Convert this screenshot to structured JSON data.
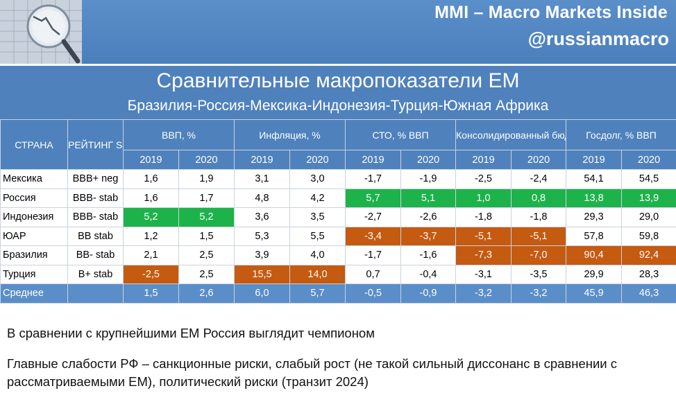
{
  "banner": {
    "title": "MMI – Macro Markets Inside",
    "handle": "@russianmacro"
  },
  "heading": {
    "title": "Сравнительные макропоказатели EM",
    "subtitle": "Бразилия-Россия-Мексика-Индонезия-Турция-Южная Африка"
  },
  "table": {
    "col_country": "СТРАНА",
    "col_rating": "РЕЙТИНГ S&P",
    "groups": [
      {
        "label": "ВВП, %"
      },
      {
        "label": "Инфляция, %"
      },
      {
        "label": "СТО, % ВВП"
      },
      {
        "label": "Консолидированный бюджет, % ВВП"
      },
      {
        "label": "Госдолг, % ВВП"
      }
    ],
    "years": [
      "2019",
      "2020"
    ],
    "rows": [
      {
        "country": "Мексика",
        "rating": "BBB+ neg",
        "values": [
          "1,6",
          "1,9",
          "3,1",
          "3,0",
          "-1,7",
          "-1,9",
          "-2,5",
          "-2,4",
          "54,1",
          "54,5"
        ]
      },
      {
        "country": "Россия",
        "rating": "BBB- stab",
        "values": [
          "1,6",
          "1,7",
          "4,8",
          "4,2",
          "5,7",
          "5,1",
          "1,0",
          "0,8",
          "13,8",
          "13,9"
        ]
      },
      {
        "country": "Индонезия",
        "rating": "BBB- stab",
        "values": [
          "5,2",
          "5,2",
          "3,6",
          "3,5",
          "-2,7",
          "-2,6",
          "-1,8",
          "-1,8",
          "29,3",
          "29,0"
        ]
      },
      {
        "country": "ЮАР",
        "rating": "BB stab",
        "values": [
          "1,2",
          "1,5",
          "5,3",
          "5,5",
          "-3,4",
          "-3,7",
          "-5,1",
          "-5,1",
          "57,8",
          "59,8"
        ]
      },
      {
        "country": "Бразилия",
        "rating": "BB- stab",
        "values": [
          "2,1",
          "2,5",
          "3,9",
          "4,0",
          "-1,7",
          "-1,6",
          "-7,3",
          "-7,0",
          "90,4",
          "92,4"
        ]
      },
      {
        "country": "Турция",
        "rating": "B+ stab",
        "values": [
          "-2,5",
          "2,5",
          "15,5",
          "14,0",
          "0,7",
          "-0,4",
          "-3,1",
          "-3,5",
          "29,9",
          "28,3"
        ]
      }
    ],
    "average": {
      "country": "Среднее",
      "rating": "",
      "values": [
        "1,5",
        "2,6",
        "6,0",
        "5,7",
        "-0,5",
        "-0,9",
        "-3,2",
        "-3,2",
        "45,9",
        "46,3"
      ]
    },
    "highlight_colors": {
      "good": "#1db34a",
      "bad": "#c55a11"
    }
  },
  "notes": {
    "line1": "В сравнении с крупнейшими EM Россия выглядит чемпионом",
    "line2": "Главные слабости РФ – санкционные риски, слабый рост (не такой сильный диссонанс в сравнении с рассматриваемыми EM), политический риски (транзит 2024)"
  }
}
